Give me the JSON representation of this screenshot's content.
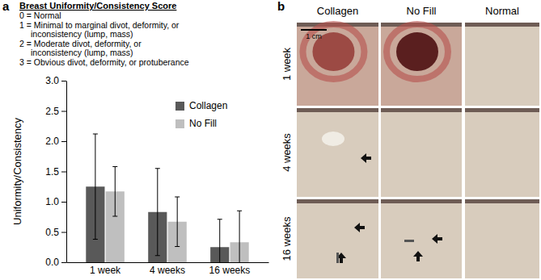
{
  "chart_data": {
    "type": "bar",
    "y_label": "Uniformity/Consistency",
    "categories": [
      "1 week",
      "4 weeks",
      "16 weeks"
    ],
    "series": [
      {
        "name": "Collagen",
        "color": "#595959",
        "values": [
          1.25,
          0.83,
          0.25
        ],
        "errors": [
          0.87,
          0.72,
          0.46
        ]
      },
      {
        "name": "No Fill",
        "color": "#bfbfbf",
        "values": [
          1.17,
          0.67,
          0.33
        ],
        "errors": [
          0.41,
          0.41,
          0.52
        ]
      }
    ],
    "ylim": [
      0,
      3
    ],
    "yticks": [
      {
        "value": 0,
        "label": "0.0"
      },
      0.5,
      {
        "value": 1,
        "label": "1.0"
      },
      1.5,
      {
        "value": 2,
        "label": "2.0"
      },
      2.5,
      {
        "value": 3,
        "label": "3.0"
      }
    ],
    "grid": false,
    "legend": "upper right"
  },
  "panel_labels": [
    "a",
    "b"
  ],
  "score_key": {
    "title": "Breast Uniformity/Consistency Score",
    "lines": [
      "0 = Normal",
      "1 = Minimal to marginal divot, deformity, or",
      "inconsistency (lump, mass)",
      "2 = Moderate divot, deformity, or",
      "inconsistency (lump, mass)",
      "3 = Obvious divot, deformity, or protuberance"
    ]
  },
  "photo_grid": {
    "columns": [
      "Collagen",
      "No Fill",
      "Normal"
    ],
    "rows": [
      "1 week",
      "4 weeks",
      "16 weeks"
    ],
    "scale_bar": "1 cm"
  }
}
